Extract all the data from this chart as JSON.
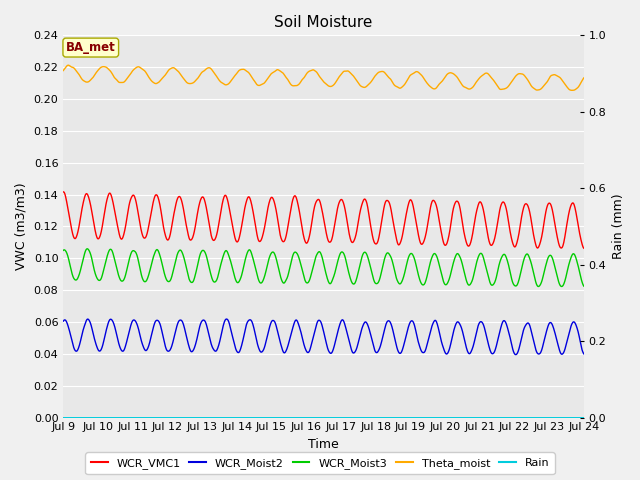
{
  "title": "Soil Moisture",
  "xlabel": "Time",
  "ylabel_left": "VWC (m3/m3)",
  "ylabel_right": "Rain (mm)",
  "annotation_text": "BA_met",
  "xlim_days": [
    9,
    24
  ],
  "ylim_left": [
    0.0,
    0.24
  ],
  "ylim_right": [
    0.0,
    1.0
  ],
  "yticks_left": [
    0.0,
    0.02,
    0.04,
    0.06,
    0.08,
    0.1,
    0.12,
    0.14,
    0.16,
    0.18,
    0.2,
    0.22,
    0.24
  ],
  "yticks_right": [
    0.0,
    0.2,
    0.4,
    0.6,
    0.8,
    1.0
  ],
  "xtick_labels": [
    "Jul 9",
    "Jul 10",
    "Jul 11",
    "Jul 12",
    "Jul 13",
    "Jul 14",
    "Jul 15",
    "Jul 16",
    "Jul 17",
    "Jul 18",
    "Jul 19",
    "Jul 20",
    "Jul 21",
    "Jul 22",
    "Jul 23",
    "Jul 24"
  ],
  "series": {
    "WCR_VMC1": {
      "color": "#ff0000",
      "base": 0.127,
      "amp": 0.014,
      "freq": 1.5,
      "phase": 1.5,
      "decay": 0.00045,
      "noise": 0.0018
    },
    "WCR_Moist2": {
      "color": "#0000dd",
      "base": 0.052,
      "amp": 0.01,
      "freq": 1.5,
      "phase": 1.2,
      "decay": 0.00015,
      "noise": 0.0015
    },
    "WCR_Moist3": {
      "color": "#00cc00",
      "base": 0.096,
      "amp": 0.01,
      "freq": 1.5,
      "phase": 1.3,
      "decay": 0.00025,
      "noise": 0.0015
    },
    "Theta_moist": {
      "color": "#ffaa00",
      "base": 0.216,
      "amp": 0.005,
      "freq": 1.0,
      "phase": 0.5,
      "decay": 0.0004,
      "noise": 0.001
    },
    "Rain": {
      "color": "#00ccdd",
      "base": 0.0,
      "amp": 0.0,
      "freq": 0.0,
      "phase": 0.0,
      "decay": 0.0,
      "noise": 0.0
    }
  },
  "legend_order": [
    "WCR_VMC1",
    "WCR_Moist2",
    "WCR_Moist3",
    "Theta_moist",
    "Rain"
  ],
  "bg_color": "#e8e8e8",
  "plot_bg_color": "#d8d8d8",
  "annotation_bg": "#ffffcc",
  "annotation_border": "#aaaa00",
  "annotation_text_color": "#880000",
  "fig_bg_color": "#f0f0f0",
  "title_fontsize": 11,
  "axis_fontsize": 9,
  "tick_fontsize": 8
}
